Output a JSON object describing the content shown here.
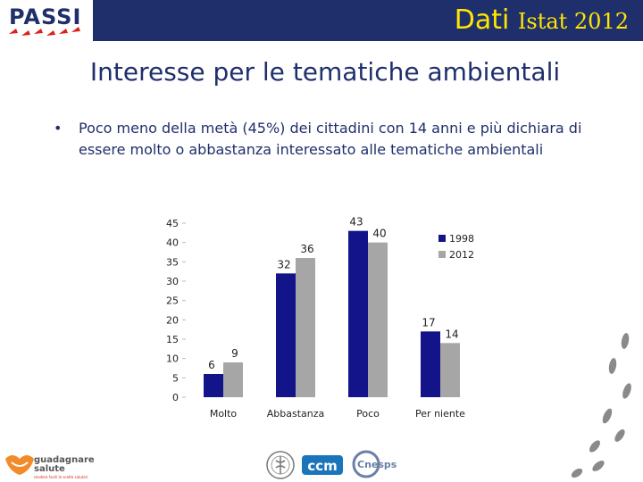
{
  "header": {
    "logo_text": "PASSI",
    "title_main": "Dati",
    "title_rest": "Istat 2012",
    "bar_color": "#1f2f6b",
    "title_color": "#ffe600"
  },
  "slide": {
    "title": "Interesse per le tematiche ambientali",
    "bullet": "Poco meno della metà (45%) dei cittadini con 14 anni e più dichiara di essere molto o abbastanza interessato alle tematiche ambientali"
  },
  "chart_data": {
    "type": "bar",
    "categories": [
      "Molto",
      "Abbastanza",
      "Poco",
      "Per niente"
    ],
    "series": [
      {
        "name": "1998",
        "values": [
          6,
          32,
          43,
          17
        ],
        "color": "#14148a"
      },
      {
        "name": "2012",
        "values": [
          9,
          36,
          40,
          14
        ],
        "color": "#a6a6a6"
      }
    ],
    "ylim": [
      0,
      45
    ],
    "yticks": [
      0,
      5,
      10,
      15,
      20,
      25,
      30,
      35,
      40,
      45
    ],
    "grid": false,
    "legend": "top-right",
    "data_labels": true
  },
  "footer": {
    "logo1_line1": "guadagnare",
    "logo1_line2": "salute",
    "logo1_tagline": "rendere facili le scelte salutari",
    "logo2_text": "ccm",
    "logo3_text": "Cnesps"
  },
  "icons": [
    "passi-logo-icon",
    "guadagnare-salute-logo-icon",
    "iss-seal-icon",
    "ccm-logo-icon",
    "cnesps-logo-icon",
    "footprints-icon"
  ]
}
